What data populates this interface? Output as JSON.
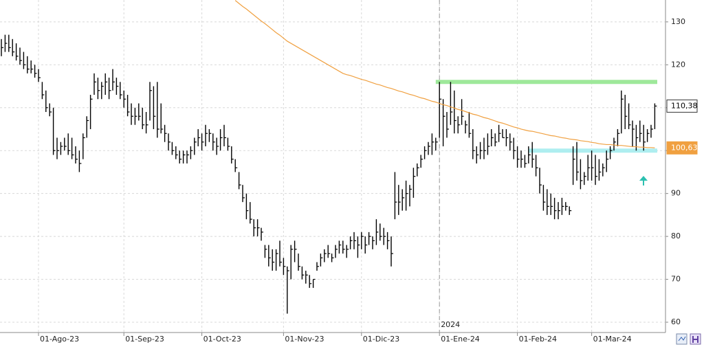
{
  "chart_data": {
    "type": "ohlc",
    "categories": [
      null,
      null,
      null,
      null,
      null,
      null,
      null,
      null,
      null,
      null,
      "01-Ago-23",
      null,
      null,
      null,
      null,
      null,
      null,
      null,
      null,
      null,
      null,
      null,
      null,
      null,
      null,
      null,
      null,
      null,
      null,
      null,
      null,
      null,
      null,
      "01-Sep-23",
      null,
      null,
      null,
      null,
      null,
      null,
      null,
      null,
      null,
      null,
      null,
      null,
      null,
      null,
      null,
      null,
      null,
      null,
      null,
      null,
      "01-Oct-23",
      null,
      null,
      null,
      null,
      null,
      null,
      null,
      null,
      null,
      null,
      null,
      null,
      null,
      null,
      null,
      null,
      null,
      null,
      null,
      null,
      null,
      "01-Nov-23",
      null,
      null,
      null,
      null,
      null,
      null,
      null,
      null,
      null,
      null,
      null,
      null,
      null,
      null,
      null,
      null,
      null,
      null,
      null,
      null,
      "01-Dic-23",
      null,
      null,
      null,
      null,
      null,
      null,
      null,
      null,
      null,
      null,
      null,
      null,
      null,
      null,
      null,
      null,
      null,
      null,
      null,
      null,
      "01-Ene-24",
      null,
      null,
      null,
      null,
      null,
      null,
      null,
      null,
      null,
      null,
      null,
      null,
      null,
      null,
      null,
      null,
      null,
      null,
      null,
      null,
      "01-Feb-24",
      null,
      null,
      null,
      null,
      null,
      null,
      null,
      null,
      null,
      null,
      null,
      null,
      null,
      null,
      null,
      null,
      null,
      null,
      null,
      "01-Mar-24",
      null,
      null,
      null,
      null,
      null,
      null,
      null,
      null,
      null,
      null,
      null,
      null,
      null,
      null,
      null,
      null,
      null
    ],
    "high": [
      126,
      127,
      127,
      126,
      125,
      124,
      123,
      122,
      121,
      120,
      119,
      116,
      114,
      111,
      110,
      103,
      102,
      103,
      104,
      103,
      101,
      100,
      104,
      108,
      113,
      118,
      117,
      116,
      118,
      117,
      119,
      117,
      116,
      114,
      113,
      111,
      110,
      111,
      110,
      109,
      116,
      115,
      116,
      111,
      106,
      104,
      102,
      101,
      100,
      100,
      100,
      101,
      103,
      105,
      104,
      106,
      105,
      104,
      103,
      105,
      106,
      103,
      101,
      98,
      95,
      92,
      90,
      88,
      84,
      84,
      82,
      78,
      78,
      77,
      77,
      79,
      75,
      73,
      78,
      79,
      76,
      73,
      72,
      71,
      70,
      74,
      76,
      77,
      78,
      76,
      78,
      79,
      79,
      78,
      80,
      81,
      80,
      81,
      80,
      81,
      80,
      84,
      83,
      82,
      81,
      80,
      95,
      92,
      91,
      93,
      92,
      96,
      97,
      99,
      101,
      102,
      104,
      103,
      116,
      112,
      109,
      116,
      114,
      108,
      112,
      107,
      109,
      105,
      101,
      102,
      103,
      104,
      105,
      104,
      106,
      105,
      105,
      104,
      103,
      101,
      100,
      99,
      101,
      102,
      99,
      96,
      92,
      91,
      90,
      89,
      88,
      89,
      88,
      87,
      101,
      102,
      98,
      95,
      99,
      100,
      99,
      98,
      97,
      100,
      101,
      103,
      105,
      114,
      113,
      111,
      107,
      106,
      107,
      106,
      105,
      106,
      111
    ],
    "low": [
      122,
      123,
      123,
      122,
      121,
      120,
      119,
      118,
      118,
      117,
      116,
      112,
      109,
      108,
      99,
      98,
      99,
      100,
      99,
      98,
      97,
      95,
      98,
      103,
      105,
      113,
      112,
      112,
      113,
      112,
      114,
      113,
      112,
      110,
      108,
      106,
      106,
      107,
      105,
      104,
      107,
      105,
      103,
      104,
      102,
      100,
      99,
      98,
      97,
      97,
      97,
      98,
      99,
      101,
      100,
      101,
      102,
      100,
      99,
      100,
      101,
      100,
      97,
      95,
      91,
      88,
      84,
      83,
      80,
      80,
      79,
      75,
      73,
      72,
      72,
      73,
      71,
      62,
      70,
      74,
      72,
      70,
      69,
      68,
      68,
      72,
      73,
      74,
      75,
      74,
      75,
      76,
      76,
      75,
      77,
      77,
      75,
      77,
      76,
      78,
      77,
      78,
      79,
      78,
      77,
      73,
      84,
      85,
      86,
      86,
      87,
      89,
      94,
      96,
      98,
      99,
      99,
      100,
      103,
      101,
      103,
      106,
      104,
      104,
      106,
      104,
      103,
      98,
      97,
      98,
      98,
      99,
      101,
      101,
      102,
      103,
      101,
      100,
      98,
      96,
      96,
      96,
      97,
      96,
      94,
      90,
      86,
      85,
      85,
      84,
      84,
      85,
      86,
      85,
      92,
      93,
      91,
      92,
      93,
      93,
      92,
      93,
      94,
      95,
      98,
      100,
      101,
      104,
      105,
      105,
      101,
      100,
      102,
      100,
      102,
      103,
      105
    ],
    "close": [
      124,
      125,
      124,
      123,
      122,
      121,
      120,
      119,
      119,
      118,
      117,
      113,
      110,
      109,
      100,
      100,
      101,
      101,
      100,
      99,
      98,
      97,
      103,
      107,
      112,
      116,
      114,
      115,
      116,
      114,
      116,
      115,
      113,
      112,
      109,
      108,
      108,
      108,
      106,
      106,
      114,
      108,
      105,
      105,
      104,
      102,
      100,
      99,
      98,
      99,
      99,
      100,
      102,
      103,
      102,
      104,
      104,
      102,
      101,
      103,
      103,
      101,
      98,
      96,
      92,
      89,
      86,
      84,
      82,
      82,
      81,
      77,
      75,
      74,
      76,
      74,
      73,
      72,
      77,
      77,
      73,
      71,
      71,
      69,
      70,
      73,
      75,
      76,
      76,
      75,
      77,
      78,
      77,
      77,
      79,
      79,
      78,
      80,
      78,
      80,
      79,
      81,
      80,
      80,
      79,
      76,
      88,
      88,
      89,
      90,
      91,
      94,
      96,
      98,
      100,
      101,
      102,
      102,
      112,
      108,
      105,
      109,
      107,
      106,
      108,
      106,
      104,
      100,
      99,
      100,
      100,
      101,
      103,
      102,
      104,
      103,
      103,
      102,
      100,
      98,
      98,
      97,
      99,
      98,
      96,
      92,
      88,
      87,
      87,
      86,
      86,
      87,
      87,
      86,
      98,
      95,
      93,
      94,
      96,
      96,
      94,
      95,
      96,
      98,
      100,
      102,
      104,
      112,
      108,
      106,
      105,
      103,
      104,
      102,
      104,
      105,
      110.38
    ],
    "color": "#000000",
    "ma": {
      "color": "#f0a040",
      "values": [
        null,
        null,
        null,
        null,
        null,
        null,
        null,
        null,
        null,
        null,
        null,
        null,
        null,
        null,
        null,
        null,
        null,
        null,
        null,
        null,
        null,
        null,
        null,
        null,
        null,
        null,
        null,
        null,
        null,
        null,
        null,
        null,
        null,
        null,
        null,
        null,
        null,
        null,
        null,
        null,
        null,
        null,
        null,
        null,
        null,
        null,
        null,
        null,
        null,
        null,
        null,
        null,
        null,
        null,
        null,
        null,
        null,
        null,
        null,
        null,
        null,
        null,
        null,
        135.0,
        134.3,
        133.6,
        133.0,
        132.3,
        131.6,
        130.9,
        130.2,
        129.6,
        128.9,
        128.2,
        127.5,
        126.9,
        126.2,
        125.5,
        125.0,
        124.5,
        124.0,
        123.5,
        123.0,
        122.5,
        122.0,
        121.5,
        121.0,
        120.5,
        120.0,
        119.5,
        119.0,
        118.5,
        118.0,
        117.7,
        117.5,
        117.2,
        116.9,
        116.6,
        116.4,
        116.1,
        115.8,
        115.5,
        115.3,
        115.0,
        114.7,
        114.5,
        114.2,
        113.9,
        113.7,
        113.4,
        113.1,
        112.9,
        112.6,
        112.3,
        112.1,
        111.8,
        111.5,
        111.3,
        111.0,
        110.7,
        110.5,
        110.2,
        109.9,
        109.6,
        109.4,
        109.1,
        108.8,
        108.5,
        108.3,
        108.0,
        107.7,
        107.5,
        107.2,
        106.9,
        106.6,
        106.4,
        106.1,
        105.8,
        105.5,
        105.3,
        105.0,
        104.8,
        104.6,
        104.5,
        104.3,
        104.1,
        103.9,
        103.7,
        103.5,
        103.4,
        103.2,
        103.0,
        102.9,
        102.7,
        102.6,
        102.5,
        102.3,
        102.2,
        102.1,
        101.9,
        101.8,
        101.6,
        101.5,
        101.4,
        101.4,
        101.3,
        101.2,
        101.2,
        101.1,
        101.0,
        100.9,
        100.9,
        100.8,
        100.8,
        100.7,
        100.7,
        100.63
      ],
      "last": {
        "value": 100.63,
        "label": "100,63"
      }
    },
    "last": {
      "value": 110.38,
      "label": "110,38"
    },
    "levels": [
      {
        "value": 116,
        "color": "#9ee89a"
      },
      {
        "value": 100,
        "color": "#aeeef0"
      }
    ],
    "year_marker": "2024",
    "ylim": [
      57.6,
      135.1
    ],
    "yticks": [
      60,
      70,
      80,
      90,
      100,
      110,
      120,
      130
    ],
    "grid": true
  }
}
